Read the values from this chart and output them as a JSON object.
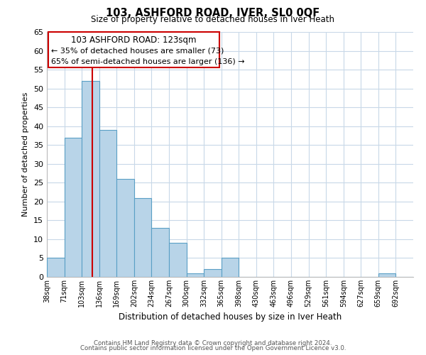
{
  "title": "103, ASHFORD ROAD, IVER, SL0 0QF",
  "subtitle": "Size of property relative to detached houses in Iver Heath",
  "xlabel": "Distribution of detached houses by size in Iver Heath",
  "ylabel": "Number of detached properties",
  "bin_labels": [
    "38sqm",
    "71sqm",
    "103sqm",
    "136sqm",
    "169sqm",
    "202sqm",
    "234sqm",
    "267sqm",
    "300sqm",
    "332sqm",
    "365sqm",
    "398sqm",
    "430sqm",
    "463sqm",
    "496sqm",
    "529sqm",
    "561sqm",
    "594sqm",
    "627sqm",
    "659sqm",
    "692sqm"
  ],
  "bar_heights": [
    5,
    37,
    52,
    39,
    26,
    21,
    13,
    9,
    1,
    2,
    5,
    0,
    0,
    0,
    0,
    0,
    0,
    0,
    0,
    1,
    0
  ],
  "bar_color": "#b8d4e8",
  "bar_edge_color": "#5a9fc5",
  "highlight_line_color": "#cc0000",
  "annotation_title": "103 ASHFORD ROAD: 123sqm",
  "annotation_line1": "← 35% of detached houses are smaller (73)",
  "annotation_line2": "65% of semi-detached houses are larger (136) →",
  "annotation_box_color": "#cc0000",
  "ylim": [
    0,
    65
  ],
  "yticks": [
    0,
    5,
    10,
    15,
    20,
    25,
    30,
    35,
    40,
    45,
    50,
    55,
    60,
    65
  ],
  "footer_line1": "Contains HM Land Registry data © Crown copyright and database right 2024.",
  "footer_line2": "Contains public sector information licensed under the Open Government Licence v3.0.",
  "background_color": "#ffffff",
  "grid_color": "#c8d8e8"
}
